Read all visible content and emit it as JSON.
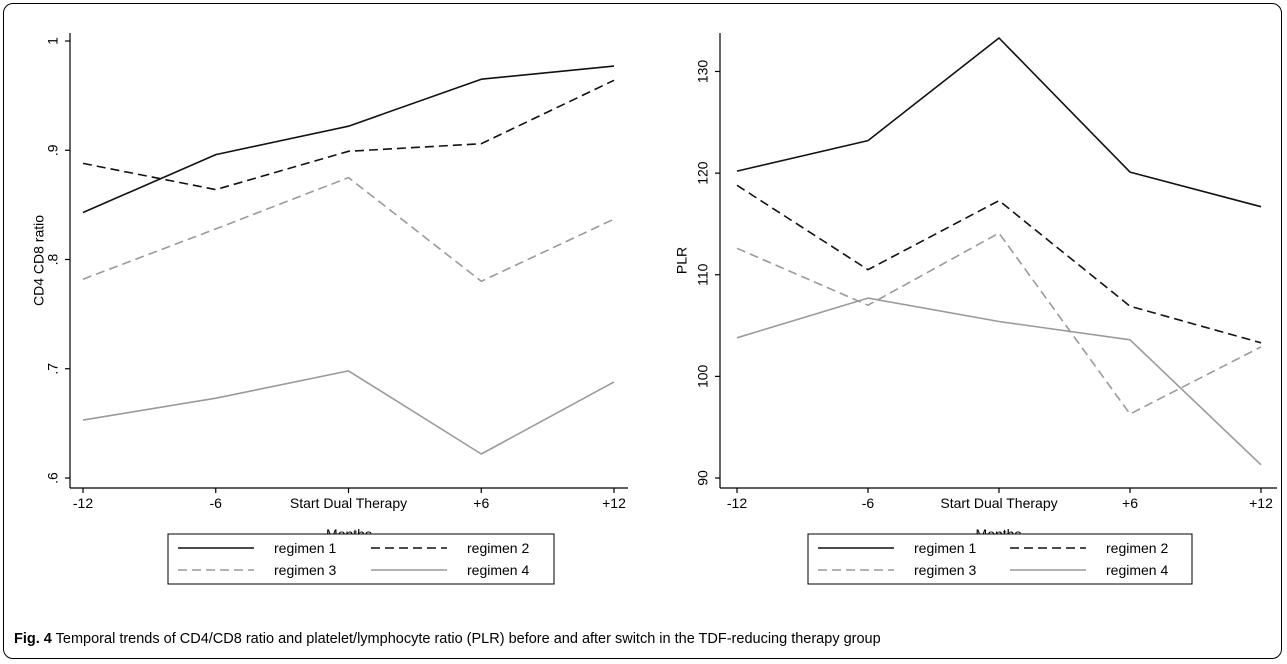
{
  "caption": {
    "label": "Fig. 4",
    "text": "Temporal trends of CD4/CD8 ratio and platelet/lymphocyte ratio (PLR) before and after switch in the TDF-reducing therapy group"
  },
  "colors": {
    "regimen_1": "#111111",
    "regimen_2": "#111111",
    "regimen_3": "#9a9a9a",
    "regimen_4": "#9a9a9a"
  },
  "chart_data": [
    {
      "type": "line",
      "title": "",
      "xlabel": "Months",
      "ylabel": "CD4 CD8 ratio",
      "categories": [
        "-12",
        "-6",
        "Start Dual Therapy",
        "+6",
        "+12"
      ],
      "ylim": [
        0.6,
        1.0
      ],
      "yticks": [
        0.6,
        0.7,
        0.8,
        0.9,
        1.0
      ],
      "ytick_labels": [
        ".6",
        ".7",
        ".8",
        ".9",
        "1"
      ],
      "grid": false,
      "legend_position": "bottom",
      "series": [
        {
          "name": "regimen 1",
          "style": "solid",
          "color": "#111111",
          "values": [
            0.843,
            0.896,
            0.922,
            0.965,
            0.977
          ]
        },
        {
          "name": "regimen 2",
          "style": "dashed",
          "color": "#111111",
          "values": [
            0.888,
            0.864,
            0.899,
            0.906,
            0.964
          ]
        },
        {
          "name": "regimen 3",
          "style": "dashed",
          "color": "#9a9a9a",
          "values": [
            0.782,
            0.828,
            0.875,
            0.78,
            0.837
          ]
        },
        {
          "name": "regimen 4",
          "style": "solid",
          "color": "#9a9a9a",
          "values": [
            0.653,
            0.673,
            0.698,
            0.622,
            0.688
          ]
        }
      ]
    },
    {
      "type": "line",
      "title": "",
      "xlabel": "Months",
      "ylabel": "PLR",
      "categories": [
        "-12",
        "-6",
        "Start Dual Therapy",
        "+6",
        "+12"
      ],
      "ylim": [
        90,
        133
      ],
      "yticks": [
        90,
        100,
        110,
        120,
        130
      ],
      "ytick_labels": [
        "90",
        "100",
        "110",
        "120",
        "130"
      ],
      "grid": false,
      "legend_position": "bottom",
      "series": [
        {
          "name": "regimen 1",
          "style": "solid",
          "color": "#111111",
          "values": [
            120.2,
            123.2,
            133.3,
            120.1,
            116.7
          ]
        },
        {
          "name": "regimen 2",
          "style": "dashed",
          "color": "#111111",
          "values": [
            118.8,
            110.5,
            117.3,
            106.9,
            103.3
          ]
        },
        {
          "name": "regimen 3",
          "style": "dashed",
          "color": "#9a9a9a",
          "values": [
            112.6,
            107.0,
            114.1,
            96.3,
            102.9
          ]
        },
        {
          "name": "regimen 4",
          "style": "solid",
          "color": "#9a9a9a",
          "values": [
            103.8,
            107.7,
            105.4,
            103.6,
            91.3
          ]
        }
      ]
    }
  ]
}
